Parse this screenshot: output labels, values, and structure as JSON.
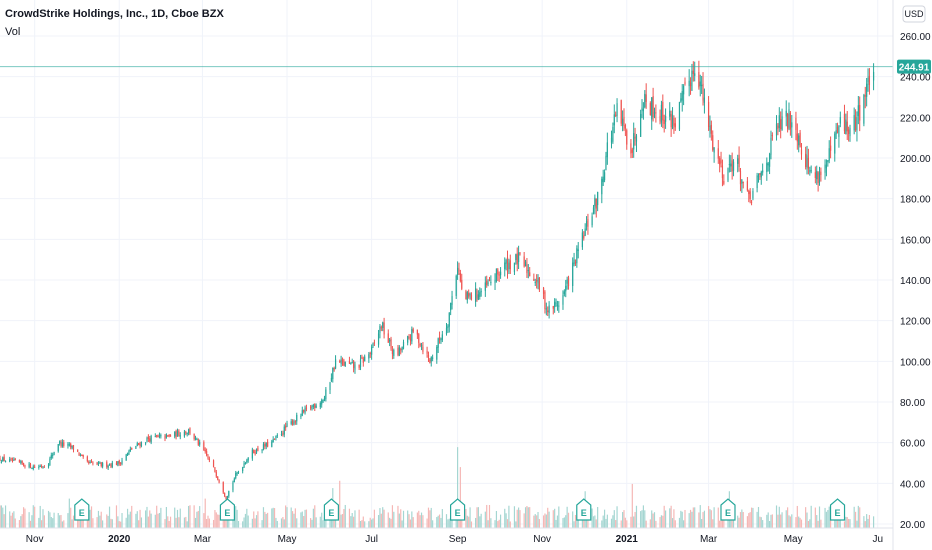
{
  "header": {
    "title": "CrowdStrike Holdings, Inc., 1D, Cboe BZX",
    "volume_label": "Vol"
  },
  "currency": "USD",
  "last_price_label": "244.91",
  "colors": {
    "up": "#26a69a",
    "down": "#ef5350",
    "up_volume": "#a5d6d2",
    "down_volume": "#f5b7b5",
    "last_price": "#26a69a",
    "grid": "#f0f3fa"
  },
  "earnings_marker_label": "E",
  "chart_data": {
    "type": "candlestick",
    "title": "CrowdStrike Holdings, Inc., 1D, Cboe BZX",
    "y_ticks": [
      "20.00",
      "40.00",
      "60.00",
      "80.00",
      "100.00",
      "120.00",
      "140.00",
      "160.00",
      "180.00",
      "200.00",
      "220.00",
      "240.00",
      "260.00"
    ],
    "ylim": [
      10,
      268
    ],
    "x_ticks": [
      {
        "label": "Nov",
        "date": "2019-11-01",
        "bold": false
      },
      {
        "label": "2020",
        "date": "2020-01-01",
        "bold": true
      },
      {
        "label": "Mar",
        "date": "2020-03-01",
        "bold": false
      },
      {
        "label": "May",
        "date": "2020-05-01",
        "bold": false
      },
      {
        "label": "Jul",
        "date": "2020-07-01",
        "bold": false
      },
      {
        "label": "Sep",
        "date": "2020-09-01",
        "bold": false
      },
      {
        "label": "Nov",
        "date": "2020-11-01",
        "bold": false
      },
      {
        "label": "2021",
        "date": "2021-01-01",
        "bold": true
      },
      {
        "label": "Mar",
        "date": "2021-03-01",
        "bold": false
      },
      {
        "label": "May",
        "date": "2021-05-01",
        "bold": false
      },
      {
        "label": "Ju",
        "date": "2021-07-01",
        "bold": false
      }
    ],
    "xlim": [
      "2019-10-07",
      "2021-07-12"
    ],
    "last_price": 244.91,
    "grid": true,
    "close_path": [
      [
        "2019-10-07",
        52
      ],
      [
        "2019-10-20",
        50
      ],
      [
        "2019-11-01",
        48
      ],
      [
        "2019-11-10",
        49
      ],
      [
        "2019-11-18",
        60
      ],
      [
        "2019-11-30",
        57
      ],
      [
        "2019-12-08",
        50
      ],
      [
        "2019-12-20",
        49
      ],
      [
        "2020-01-01",
        50
      ],
      [
        "2020-01-10",
        57
      ],
      [
        "2020-01-22",
        62
      ],
      [
        "2020-02-05",
        63
      ],
      [
        "2020-02-20",
        66
      ],
      [
        "2020-03-01",
        57
      ],
      [
        "2020-03-10",
        46
      ],
      [
        "2020-03-18",
        33
      ],
      [
        "2020-03-25",
        44
      ],
      [
        "2020-04-05",
        55
      ],
      [
        "2020-04-20",
        60
      ],
      [
        "2020-05-01",
        68
      ],
      [
        "2020-05-15",
        76
      ],
      [
        "2020-05-28",
        82
      ],
      [
        "2020-06-05",
        100
      ],
      [
        "2020-06-20",
        97
      ],
      [
        "2020-07-01",
        105
      ],
      [
        "2020-07-08",
        118
      ],
      [
        "2020-07-18",
        102
      ],
      [
        "2020-08-01",
        115
      ],
      [
        "2020-08-12",
        100
      ],
      [
        "2020-08-25",
        120
      ],
      [
        "2020-09-01",
        148
      ],
      [
        "2020-09-05",
        130
      ],
      [
        "2020-09-20",
        135
      ],
      [
        "2020-10-05",
        147
      ],
      [
        "2020-10-15",
        150
      ],
      [
        "2020-10-28",
        140
      ],
      [
        "2020-11-05",
        125
      ],
      [
        "2020-11-15",
        130
      ],
      [
        "2020-11-25",
        150
      ],
      [
        "2020-12-05",
        170
      ],
      [
        "2020-12-12",
        182
      ],
      [
        "2020-12-18",
        205
      ],
      [
        "2020-12-25",
        222
      ],
      [
        "2021-01-05",
        205
      ],
      [
        "2021-01-12",
        230
      ],
      [
        "2021-01-25",
        222
      ],
      [
        "2021-02-05",
        218
      ],
      [
        "2021-02-15",
        238
      ],
      [
        "2021-02-20",
        248
      ],
      [
        "2021-02-26",
        225
      ],
      [
        "2021-03-05",
        205
      ],
      [
        "2021-03-12",
        192
      ],
      [
        "2021-03-20",
        200
      ],
      [
        "2021-03-30",
        178
      ],
      [
        "2021-04-10",
        195
      ],
      [
        "2021-04-20",
        216
      ],
      [
        "2021-05-01",
        220
      ],
      [
        "2021-05-08",
        204
      ],
      [
        "2021-05-15",
        190
      ],
      [
        "2021-05-25",
        196
      ],
      [
        "2021-06-05",
        218
      ],
      [
        "2021-06-12",
        212
      ],
      [
        "2021-06-22",
        232
      ],
      [
        "2021-06-28",
        244.91
      ]
    ],
    "volume_spikes": [
      [
        "2020-06-03",
        38
      ],
      [
        "2020-09-01",
        77
      ],
      [
        "2020-09-03",
        58
      ],
      [
        "2020-03-03",
        28
      ],
      [
        "2020-12-02",
        35
      ],
      [
        "2021-01-05",
        42
      ],
      [
        "2021-03-16",
        35
      ],
      [
        "2019-11-26",
        28
      ],
      [
        "2021-06-02",
        25
      ],
      [
        "2020-06-08",
        45
      ]
    ],
    "earnings_dates": [
      "2019-12-05",
      "2020-03-19",
      "2020-06-02",
      "2020-09-01",
      "2020-12-01",
      "2021-03-15",
      "2021-06-02"
    ]
  }
}
